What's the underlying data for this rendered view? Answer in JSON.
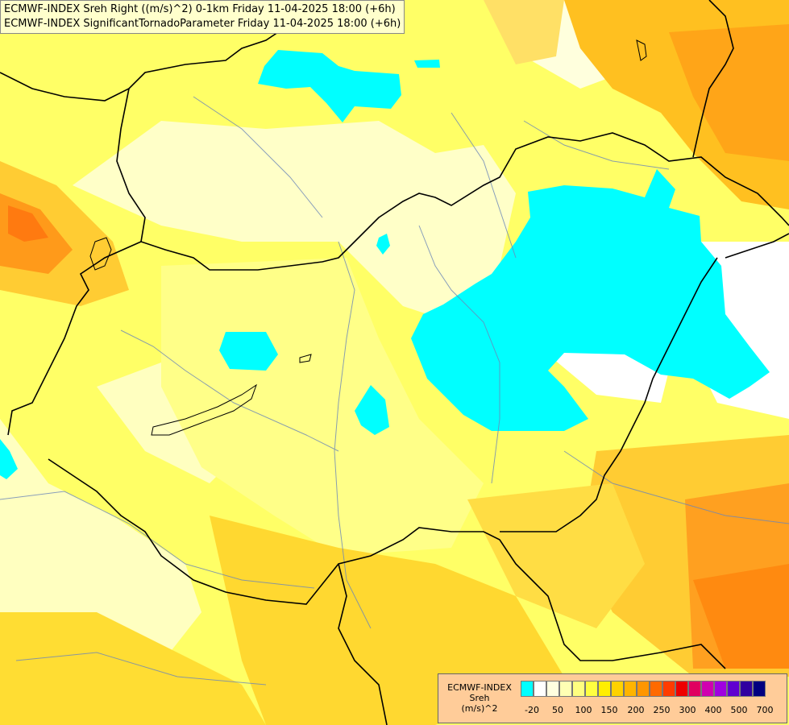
{
  "header": {
    "line1": "ECMWF-INDEX Sreh Right ((m/s)^2) 0-1km Friday 11-04-2025 18:00 (+6h)",
    "line2": "ECMWF-INDEX SignificantTornadoParameter Friday 11-04-2025 18:00 (+6h)"
  },
  "legend": {
    "title_line1": "ECMWF-INDEX",
    "title_line2": "Sreh",
    "title_line3": "(m/s)^2",
    "colors": [
      "#00ffff",
      "#ffffff",
      "#ffffe0",
      "#ffffb4",
      "#ffff80",
      "#ffff40",
      "#ffee00",
      "#ffd200",
      "#ffb400",
      "#ff9600",
      "#ff6a00",
      "#ff3c00",
      "#ee0000",
      "#e00060",
      "#d000b0",
      "#a000e0",
      "#6000d0",
      "#3000a0",
      "#000080"
    ],
    "tick_labels": [
      "-20",
      "50",
      "100",
      "150",
      "200",
      "250",
      "300",
      "400",
      "500",
      "700"
    ]
  }
}
